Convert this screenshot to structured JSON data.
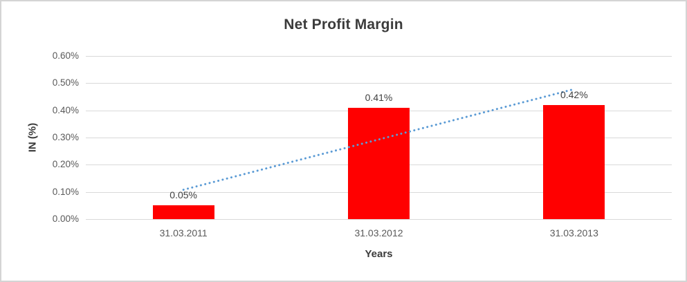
{
  "chart_data": {
    "type": "bar",
    "title": "Net Profit Margin",
    "xlabel": "Years",
    "ylabel": "IN (%)",
    "categories": [
      "31.03.2011",
      "31.03.2012",
      "31.03.2013"
    ],
    "series": [
      {
        "name": "Net Profit Margin",
        "values": [
          0.05,
          0.41,
          0.42
        ],
        "data_labels": [
          "0.05%",
          "0.41%",
          "0.42%"
        ],
        "color": "#ff0000"
      }
    ],
    "y_ticks": [
      "0.60%",
      "0.50%",
      "0.40%",
      "0.30%",
      "0.20%",
      "0.10%",
      "0.00%"
    ],
    "ylim": [
      0,
      0.6
    ],
    "grid": "horizontal-only",
    "gridline_color": "#d9d9d9",
    "legend": "none",
    "trendline": {
      "type": "linear",
      "style": "dotted",
      "color": "#5b9bd5",
      "start_value": 0.108,
      "end_value": 0.478
    },
    "text_colors": {
      "title": "#3b3b3b",
      "axis_titles": "#3b3b3b",
      "tick_labels": "#595959",
      "data_labels": "#404040"
    }
  }
}
